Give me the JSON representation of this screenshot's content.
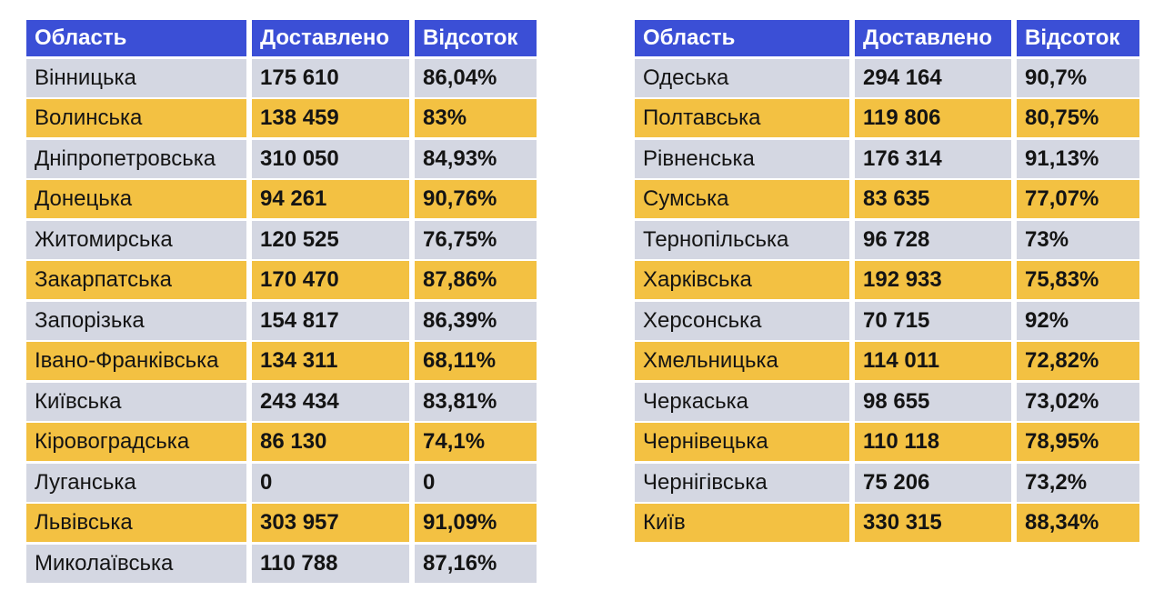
{
  "colors": {
    "header_bg": "#3b4fd6",
    "header_text": "#ffffff",
    "row_gray": "#d4d7e2",
    "row_orange": "#f3c142",
    "text": "#141414",
    "background": "#ffffff"
  },
  "chart_data": [
    {
      "type": "table",
      "columns": [
        "Область",
        "Доставлено",
        "Відсоток"
      ],
      "rows": [
        [
          "Вінницька",
          "175 610",
          "86,04%"
        ],
        [
          "Волинська",
          "138 459",
          "83%"
        ],
        [
          "Дніпропетровська",
          "310 050",
          "84,93%"
        ],
        [
          "Донецька",
          "94 261",
          "90,76%"
        ],
        [
          "Житомирська",
          "120 525",
          "76,75%"
        ],
        [
          "Закарпатська",
          "170 470",
          "87,86%"
        ],
        [
          "Запорізька",
          "154 817",
          "86,39%"
        ],
        [
          "Івано-Франківська",
          "134 311",
          "68,11%"
        ],
        [
          "Київська",
          "243 434",
          "83,81%"
        ],
        [
          "Кіровоградська",
          "86 130",
          "74,1%"
        ],
        [
          "Луганська",
          "0",
          "0"
        ],
        [
          "Львівська",
          "303 957",
          "91,09%"
        ],
        [
          "Миколаївська",
          "110 788",
          "87,16%"
        ]
      ]
    },
    {
      "type": "table",
      "columns": [
        "Область",
        "Доставлено",
        "Відсоток"
      ],
      "rows": [
        [
          "Одеська",
          "294 164",
          "90,7%"
        ],
        [
          "Полтавська",
          "119 806",
          "80,75%"
        ],
        [
          "Рівненська",
          "176 314",
          "91,13%"
        ],
        [
          "Сумська",
          "83 635",
          "77,07%"
        ],
        [
          "Тернопільська",
          "96 728",
          "73%"
        ],
        [
          "Харківська",
          "192 933",
          "75,83%"
        ],
        [
          "Херсонська",
          "70 715",
          "92%"
        ],
        [
          "Хмельницька",
          "114 011",
          "72,82%"
        ],
        [
          "Черкаська",
          "98 655",
          "73,02%"
        ],
        [
          "Чернівецька",
          "110 118",
          "78,95%"
        ],
        [
          "Чернігівська",
          "75 206",
          "73,2%"
        ],
        [
          "Київ",
          "330 315",
          "88,34%"
        ]
      ]
    }
  ]
}
